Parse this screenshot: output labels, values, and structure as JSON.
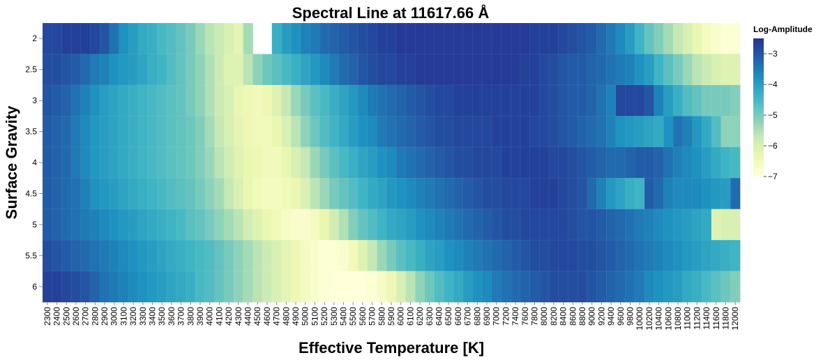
{
  "chart_data": {
    "type": "heatmap",
    "title": "Spectral Line at 11617.66 Å",
    "xlabel": "Effective Temperature [K]",
    "ylabel": "Surface Gravity",
    "x_categories": [
      "2300",
      "2400",
      "2500",
      "2600",
      "2700",
      "2800",
      "2900",
      "3000",
      "3100",
      "3200",
      "3300",
      "3400",
      "3500",
      "3600",
      "3700",
      "3800",
      "3900",
      "4000",
      "4100",
      "4200",
      "4300",
      "4400",
      "4500",
      "4600",
      "4700",
      "4800",
      "4900",
      "5000",
      "5100",
      "5200",
      "5300",
      "5400",
      "5500",
      "5600",
      "5700",
      "5800",
      "5900",
      "6000",
      "6100",
      "6200",
      "6300",
      "6400",
      "6500",
      "6600",
      "6700",
      "6800",
      "6900",
      "7000",
      "7200",
      "7400",
      "7600",
      "7800",
      "8000",
      "8200",
      "8400",
      "8600",
      "8800",
      "9000",
      "9200",
      "9400",
      "9600",
      "9800",
      "10000",
      "10200",
      "10400",
      "10600",
      "10800",
      "11000",
      "11200",
      "11400",
      "11600",
      "11800",
      "12000"
    ],
    "y_categories": [
      "2",
      "2.5",
      "3",
      "3.5",
      "4",
      "4.5",
      "5",
      "5.5",
      "6"
    ],
    "color_scale": {
      "name": "YlGnBu",
      "min": -7,
      "max": -2.5,
      "stops": [
        "#ffffd9",
        "#edf8b1",
        "#c7e9b4",
        "#7fcdbb",
        "#41b6c4",
        "#1d91c0",
        "#225ea8",
        "#253494"
      ]
    },
    "legend": {
      "title": "Log-Amplitude",
      "ticks": [
        -3,
        -4,
        -5,
        -6,
        -7
      ],
      "tick_labels": [
        "−3",
        "−4",
        "−5",
        "−6",
        "−7"
      ]
    },
    "missing_cells": [
      {
        "x": "4500",
        "y": "2"
      },
      {
        "x": "4600",
        "y": "2"
      }
    ],
    "values": [
      [
        -2.8,
        -2.8,
        -2.7,
        -2.7,
        -2.7,
        -2.8,
        -3.0,
        -3.4,
        -3.8,
        -4.0,
        -4.2,
        -4.3,
        -4.5,
        -4.6,
        -4.8,
        -5.0,
        -5.3,
        -5.6,
        -5.8,
        -6.0,
        -6.2,
        -5.4,
        null,
        null,
        -4.3,
        -4.0,
        -3.8,
        -3.6,
        -3.5,
        -3.3,
        -3.2,
        -3.1,
        -3.0,
        -2.9,
        -2.8,
        -2.7,
        -2.7,
        -2.6,
        -2.6,
        -2.6,
        -2.6,
        -2.6,
        -2.6,
        -2.6,
        -2.6,
        -2.6,
        -2.6,
        -2.6,
        -2.6,
        -2.6,
        -2.6,
        -2.7,
        -2.7,
        -2.7,
        -2.8,
        -2.9,
        -3.0,
        -3.1,
        -3.3,
        -3.5,
        -3.7,
        -4.0,
        -4.4,
        -4.8,
        -5.1,
        -5.4,
        -5.7,
        -6.0,
        -6.3,
        -6.6,
        -6.8,
        -6.9,
        -6.9
      ],
      [
        -2.9,
        -2.9,
        -3.0,
        -3.1,
        -3.3,
        -3.5,
        -3.6,
        -3.8,
        -3.9,
        -4.0,
        -4.1,
        -4.3,
        -4.4,
        -4.6,
        -4.8,
        -5.0,
        -5.2,
        -5.5,
        -5.8,
        -6.1,
        -6.1,
        -5.6,
        -5.2,
        -4.9,
        -4.7,
        -4.5,
        -4.3,
        -4.1,
        -3.9,
        -3.7,
        -3.5,
        -3.3,
        -3.2,
        -3.0,
        -2.9,
        -2.8,
        -2.8,
        -2.7,
        -2.7,
        -2.6,
        -2.6,
        -2.6,
        -2.6,
        -2.6,
        -2.6,
        -2.6,
        -2.6,
        -2.6,
        -2.6,
        -2.6,
        -2.7,
        -2.7,
        -2.8,
        -2.9,
        -3.0,
        -3.1,
        -3.1,
        -3.2,
        -3.3,
        -3.4,
        -3.5,
        -3.6,
        -3.8,
        -4.0,
        -4.4,
        -4.7,
        -5.0,
        -5.3,
        -5.6,
        -5.8,
        -6.0,
        -6.1,
        -6.1
      ],
      [
        -3.0,
        -3.1,
        -3.2,
        -3.4,
        -3.6,
        -3.8,
        -4.0,
        -4.1,
        -4.2,
        -4.3,
        -4.4,
        -4.5,
        -4.6,
        -4.7,
        -4.8,
        -5.0,
        -5.2,
        -5.5,
        -5.8,
        -6.0,
        -6.3,
        -6.4,
        -6.5,
        -6.4,
        -6.1,
        -5.7,
        -5.3,
        -5.0,
        -4.7,
        -4.5,
        -4.3,
        -4.1,
        -3.9,
        -3.7,
        -3.5,
        -3.4,
        -3.3,
        -3.2,
        -3.1,
        -3.0,
        -2.9,
        -2.8,
        -2.8,
        -2.7,
        -2.7,
        -2.7,
        -2.7,
        -2.7,
        -2.7,
        -2.7,
        -2.7,
        -2.7,
        -2.8,
        -2.9,
        -3.0,
        -3.1,
        -3.1,
        -3.2,
        -3.4,
        -3.6,
        -2.8,
        -2.8,
        -2.8,
        -3.0,
        -3.6,
        -4.0,
        -4.3,
        -4.6,
        -4.8,
        -5.0,
        -5.0,
        -5.0,
        -5.1
      ],
      [
        -3.1,
        -3.2,
        -3.3,
        -3.5,
        -3.7,
        -3.9,
        -4.0,
        -4.1,
        -4.2,
        -4.3,
        -4.4,
        -4.5,
        -4.6,
        -4.7,
        -4.8,
        -4.9,
        -5.1,
        -5.4,
        -5.7,
        -6.0,
        -6.2,
        -6.4,
        -6.5,
        -6.5,
        -6.3,
        -6.0,
        -5.6,
        -5.2,
        -4.9,
        -4.6,
        -4.4,
        -4.2,
        -4.0,
        -3.8,
        -3.7,
        -3.5,
        -3.4,
        -3.3,
        -3.2,
        -3.1,
        -3.0,
        -2.9,
        -2.9,
        -2.8,
        -2.8,
        -2.8,
        -2.8,
        -2.7,
        -2.7,
        -2.7,
        -2.7,
        -2.8,
        -2.8,
        -2.9,
        -3.0,
        -3.1,
        -3.2,
        -3.3,
        -3.4,
        -3.6,
        -3.8,
        -3.9,
        -4.0,
        -4.1,
        -4.2,
        -3.8,
        -3.4,
        -3.6,
        -3.9,
        -4.2,
        -4.6,
        -5.2,
        -5.2
      ],
      [
        -3.1,
        -3.2,
        -3.3,
        -3.5,
        -3.7,
        -3.9,
        -4.0,
        -4.1,
        -4.2,
        -4.3,
        -4.4,
        -4.5,
        -4.6,
        -4.7,
        -4.8,
        -4.9,
        -5.1,
        -5.3,
        -5.6,
        -5.9,
        -6.1,
        -6.3,
        -6.4,
        -6.5,
        -6.5,
        -6.3,
        -6.0,
        -5.7,
        -5.3,
        -5.0,
        -4.7,
        -4.5,
        -4.3,
        -4.1,
        -4.0,
        -3.8,
        -3.7,
        -3.5,
        -3.4,
        -3.3,
        -3.2,
        -3.1,
        -3.0,
        -2.9,
        -2.9,
        -2.8,
        -2.8,
        -2.8,
        -2.7,
        -2.7,
        -2.7,
        -2.7,
        -2.7,
        -2.8,
        -2.8,
        -2.9,
        -3.0,
        -3.1,
        -3.2,
        -3.3,
        -3.3,
        -3.2,
        -3.1,
        -3.1,
        -3.2,
        -3.4,
        -3.6,
        -3.7,
        -3.8,
        -4.0,
        -4.2,
        -4.4,
        -4.5
      ],
      [
        -3.1,
        -3.2,
        -3.3,
        -3.4,
        -3.6,
        -3.8,
        -3.9,
        -4.0,
        -4.1,
        -4.2,
        -4.3,
        -4.4,
        -4.5,
        -4.6,
        -4.7,
        -4.8,
        -5.0,
        -5.2,
        -5.4,
        -5.7,
        -6.0,
        -6.3,
        -6.5,
        -6.6,
        -6.6,
        -6.5,
        -6.3,
        -6.0,
        -5.6,
        -5.3,
        -5.0,
        -4.8,
        -4.6,
        -4.4,
        -4.2,
        -4.1,
        -3.9,
        -3.8,
        -3.7,
        -3.6,
        -3.5,
        -3.4,
        -3.3,
        -3.2,
        -3.1,
        -3.0,
        -2.9,
        -2.9,
        -2.8,
        -2.8,
        -2.8,
        -2.7,
        -2.7,
        -2.7,
        -2.8,
        -2.9,
        -3.0,
        -3.3,
        -3.6,
        -3.9,
        -4.1,
        -4.3,
        -4.4,
        -3.1,
        -3.3,
        -3.6,
        -3.7,
        -3.7,
        -3.7,
        -3.8,
        -3.9,
        -4.0,
        -3.3
      ],
      [
        -3.1,
        -3.2,
        -3.3,
        -3.4,
        -3.5,
        -3.6,
        -3.7,
        -3.8,
        -3.9,
        -4.0,
        -4.1,
        -4.2,
        -4.3,
        -4.4,
        -4.5,
        -4.7,
        -4.8,
        -5.0,
        -5.2,
        -5.4,
        -5.6,
        -5.9,
        -6.1,
        -6.3,
        -6.5,
        -6.7,
        -6.8,
        -6.8,
        -6.6,
        -6.3,
        -5.9,
        -5.5,
        -5.1,
        -4.8,
        -4.6,
        -4.4,
        -4.2,
        -4.1,
        -4.0,
        -3.8,
        -3.7,
        -3.6,
        -3.5,
        -3.4,
        -3.3,
        -3.2,
        -3.1,
        -3.0,
        -2.9,
        -2.9,
        -2.8,
        -2.8,
        -2.8,
        -2.8,
        -2.8,
        -2.9,
        -3.0,
        -3.0,
        -3.1,
        -3.2,
        -3.3,
        -3.4,
        -3.5,
        -3.6,
        -3.7,
        -3.8,
        -3.9,
        -4.0,
        -4.1,
        -4.2,
        -6.1,
        -6.0,
        -6.0
      ],
      [
        -2.9,
        -3.0,
        -3.1,
        -3.2,
        -3.3,
        -3.4,
        -3.5,
        -3.6,
        -3.7,
        -3.8,
        -3.9,
        -4.0,
        -4.1,
        -4.2,
        -4.3,
        -4.4,
        -4.5,
        -4.6,
        -4.8,
        -5.0,
        -5.2,
        -5.4,
        -5.6,
        -5.8,
        -6.0,
        -6.2,
        -6.4,
        -6.6,
        -6.8,
        -6.9,
        -6.9,
        -6.8,
        -6.5,
        -6.1,
        -5.7,
        -5.3,
        -5.0,
        -4.7,
        -4.5,
        -4.3,
        -4.1,
        -4.0,
        -3.8,
        -3.7,
        -3.6,
        -3.5,
        -3.4,
        -3.3,
        -3.2,
        -3.1,
        -3.0,
        -2.9,
        -2.9,
        -2.8,
        -2.8,
        -2.8,
        -2.9,
        -2.9,
        -3.0,
        -3.1,
        -3.2,
        -3.3,
        -3.4,
        -3.5,
        -3.6,
        -3.7,
        -3.8,
        -3.9,
        -4.0,
        -4.1,
        -4.2,
        -4.3,
        -4.4
      ],
      [
        -2.7,
        -2.7,
        -2.8,
        -2.9,
        -3.0,
        -3.2,
        -3.4,
        -3.5,
        -3.6,
        -3.7,
        -3.8,
        -3.9,
        -4.0,
        -4.1,
        -4.2,
        -4.3,
        -4.5,
        -4.6,
        -4.8,
        -5.0,
        -5.2,
        -5.4,
        -5.6,
        -5.8,
        -6.0,
        -6.2,
        -6.4,
        -6.6,
        -6.8,
        -6.9,
        -7.0,
        -7.0,
        -7.0,
        -7.0,
        -6.9,
        -6.7,
        -6.4,
        -6.0,
        -5.6,
        -5.2,
        -4.9,
        -4.6,
        -4.4,
        -4.2,
        -4.0,
        -3.8,
        -3.7,
        -3.5,
        -3.4,
        -3.3,
        -3.2,
        -3.1,
        -3.0,
        -2.9,
        -2.9,
        -2.9,
        -2.9,
        -3.0,
        -3.1,
        -3.2,
        -3.3,
        -3.4,
        -3.5,
        -3.7,
        -3.8,
        -3.9,
        -4.0,
        -4.2,
        -4.3,
        -4.5,
        -4.7,
        -4.9,
        -5.1
      ]
    ]
  }
}
